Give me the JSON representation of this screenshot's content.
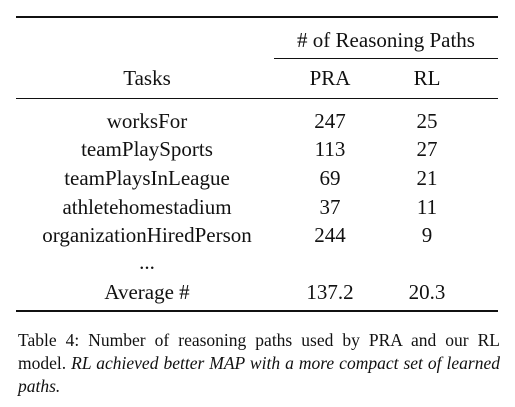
{
  "table": {
    "group_header": "# of Reasoning Paths",
    "headers": {
      "tasks": "Tasks",
      "pra": "PRA",
      "rl": "RL"
    },
    "rows": [
      {
        "task": "worksFor",
        "pra": "247",
        "rl": "25"
      },
      {
        "task": "teamPlaySports",
        "pra": "113",
        "rl": "27"
      },
      {
        "task": "teamPlaysInLeague",
        "pra": "69",
        "rl": "21"
      },
      {
        "task": "athletehomestadium",
        "pra": "37",
        "rl": "11"
      },
      {
        "task": "organizationHiredPerson",
        "pra": "244",
        "rl": "9"
      }
    ],
    "ellipsis": "...",
    "average": {
      "task": "Average #",
      "pra": "137.2",
      "rl": "20.3"
    }
  },
  "caption": {
    "text": "Table 4: Number of reasoning paths used by PRA and our RL model.",
    "emphasis": "RL achieved better MAP with a more compact set of learned paths."
  }
}
